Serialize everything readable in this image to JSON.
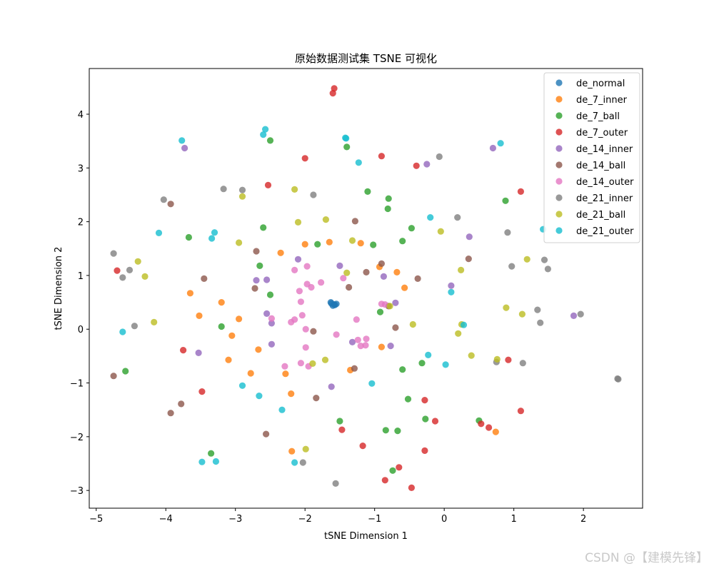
{
  "chart_data": {
    "type": "scatter",
    "title": "原始数据测试集 TSNE 可视化",
    "xlabel": "tSNE Dimension 1",
    "ylabel": "tSNE Dimension 2",
    "xlim": [
      -5.1,
      2.85
    ],
    "ylim": [
      -3.33,
      4.85
    ],
    "xticks": [
      -5,
      -4,
      -3,
      -2,
      -1,
      0,
      1,
      2
    ],
    "yticks": [
      -3,
      -2,
      -1,
      0,
      1,
      2,
      3,
      4
    ],
    "legend_position": "top-right",
    "series": [
      {
        "name": "de_normal",
        "color": "#1f77b4",
        "points": [
          [
            -1.62,
            0.48
          ],
          [
            -1.58,
            0.46
          ],
          [
            -1.6,
            0.44
          ],
          [
            -1.55,
            0.47
          ],
          [
            -1.63,
            0.5
          ],
          [
            -1.57,
            0.45
          ]
        ]
      },
      {
        "name": "de_7_inner",
        "color": "#ff7f0e",
        "points": [
          [
            -2.0,
            1.58
          ],
          [
            -1.65,
            1.62
          ],
          [
            -1.2,
            1.6
          ],
          [
            -2.35,
            1.42
          ],
          [
            -0.68,
            1.06
          ],
          [
            -0.57,
            0.77
          ],
          [
            -3.65,
            0.67
          ],
          [
            -3.2,
            0.5
          ],
          [
            -2.95,
            0.19
          ],
          [
            -3.52,
            0.25
          ],
          [
            -3.05,
            -0.12
          ],
          [
            -2.67,
            -0.38
          ],
          [
            -3.1,
            -0.57
          ],
          [
            -2.78,
            -0.82
          ],
          [
            -2.28,
            -0.83
          ],
          [
            -2.2,
            -1.2
          ],
          [
            -2.19,
            -2.27
          ],
          [
            -0.93,
            1.16
          ],
          [
            -0.9,
            -0.33
          ],
          [
            -1.35,
            -0.76
          ],
          [
            0.74,
            -1.91
          ]
        ]
      },
      {
        "name": "de_7_ball",
        "color": "#2ca02c",
        "points": [
          [
            -2.5,
            3.51
          ],
          [
            -1.4,
            3.39
          ],
          [
            -1.1,
            2.56
          ],
          [
            -0.8,
            2.43
          ],
          [
            -0.81,
            2.24
          ],
          [
            -2.6,
            1.89
          ],
          [
            -0.47,
            1.88
          ],
          [
            -3.67,
            1.71
          ],
          [
            -1.82,
            1.58
          ],
          [
            -1.02,
            1.57
          ],
          [
            -0.6,
            1.64
          ],
          [
            -2.65,
            1.18
          ],
          [
            -2.5,
            0.64
          ],
          [
            -0.92,
            0.32
          ],
          [
            -3.2,
            0.05
          ],
          [
            -0.6,
            -0.75
          ],
          [
            -0.32,
            -0.63
          ],
          [
            -4.58,
            -0.78
          ],
          [
            -0.52,
            -1.3
          ],
          [
            -1.5,
            -1.71
          ],
          [
            -0.84,
            -1.88
          ],
          [
            -0.67,
            -1.89
          ],
          [
            -0.27,
            -1.67
          ],
          [
            0.5,
            -1.7
          ],
          [
            -3.35,
            -2.31
          ],
          [
            -0.74,
            -2.63
          ],
          [
            0.88,
            2.39
          ]
        ]
      },
      {
        "name": "de_7_outer",
        "color": "#d62728",
        "points": [
          [
            -1.58,
            4.48
          ],
          [
            -1.6,
            4.39
          ],
          [
            -2.0,
            3.18
          ],
          [
            -0.9,
            3.22
          ],
          [
            -0.4,
            3.04
          ],
          [
            -2.53,
            2.68
          ],
          [
            1.1,
            2.56
          ],
          [
            -4.7,
            1.09
          ],
          [
            -3.75,
            -0.39
          ],
          [
            -3.48,
            -1.16
          ],
          [
            0.92,
            -0.57
          ],
          [
            -1.47,
            -1.87
          ],
          [
            -1.17,
            -2.17
          ],
          [
            -0.28,
            -1.32
          ],
          [
            -0.13,
            -1.71
          ],
          [
            0.53,
            -1.76
          ],
          [
            0.64,
            -1.83
          ],
          [
            1.1,
            -1.52
          ],
          [
            -0.28,
            -2.26
          ],
          [
            -0.85,
            -2.81
          ],
          [
            -0.65,
            -2.57
          ],
          [
            -0.47,
            -2.95
          ]
        ]
      },
      {
        "name": "de_14_inner",
        "color": "#9467bd",
        "points": [
          [
            -3.73,
            3.37
          ],
          [
            -0.25,
            3.07
          ],
          [
            0.7,
            3.37
          ],
          [
            0.36,
            1.72
          ],
          [
            -2.1,
            1.3
          ],
          [
            -1.5,
            1.18
          ],
          [
            -2.7,
            0.91
          ],
          [
            -2.55,
            0.92
          ],
          [
            -0.87,
            0.98
          ],
          [
            -0.7,
            0.49
          ],
          [
            0.1,
            0.81
          ],
          [
            -2.55,
            0.29
          ],
          [
            -2.48,
            0.11
          ],
          [
            -3.53,
            -0.44
          ],
          [
            -2.48,
            -0.28
          ],
          [
            -1.32,
            -0.24
          ],
          [
            -0.77,
            -0.31
          ],
          [
            -1.62,
            -1.07
          ],
          [
            1.86,
            0.25
          ]
        ]
      },
      {
        "name": "de_14_ball",
        "color": "#8c564b",
        "points": [
          [
            -3.93,
            2.33
          ],
          [
            -1.28,
            2.01
          ],
          [
            -2.7,
            1.45
          ],
          [
            -0.9,
            1.22
          ],
          [
            0.35,
            1.31
          ],
          [
            -3.45,
            0.94
          ],
          [
            -2.72,
            0.76
          ],
          [
            -1.37,
            0.78
          ],
          [
            -1.12,
            1.06
          ],
          [
            -0.38,
            0.94
          ],
          [
            -0.8,
            0.43
          ],
          [
            -0.7,
            0.03
          ],
          [
            -1.88,
            -0.04
          ],
          [
            -1.29,
            -0.73
          ],
          [
            -4.75,
            -0.87
          ],
          [
            -1.84,
            -1.28
          ],
          [
            -3.78,
            -1.39
          ],
          [
            -3.93,
            -1.56
          ],
          [
            -2.56,
            -1.95
          ]
        ]
      },
      {
        "name": "de_14_outer",
        "color": "#e377c2",
        "points": [
          [
            -2.15,
            1.1
          ],
          [
            -1.97,
            1.17
          ],
          [
            -1.45,
            0.95
          ],
          [
            -1.97,
            0.84
          ],
          [
            -2.08,
            0.71
          ],
          [
            -1.91,
            0.78
          ],
          [
            -1.77,
            0.87
          ],
          [
            -2.06,
            0.51
          ],
          [
            -2.48,
            0.2
          ],
          [
            -2.2,
            0.13
          ],
          [
            -2.15,
            0.18
          ],
          [
            -1.99,
            0.0
          ],
          [
            -2.04,
            0.26
          ],
          [
            -1.55,
            -0.1
          ],
          [
            -1.26,
            0.18
          ],
          [
            -0.9,
            0.47
          ],
          [
            -0.85,
            0.46
          ],
          [
            -1.24,
            -0.2
          ],
          [
            -1.2,
            -0.31
          ],
          [
            -1.13,
            -0.3
          ],
          [
            -1.12,
            -0.18
          ],
          [
            -2.29,
            -0.69
          ],
          [
            -1.99,
            -0.34
          ],
          [
            -2.06,
            -0.63
          ],
          [
            -1.95,
            -0.69
          ]
        ]
      },
      {
        "name": "de_21_inner",
        "color": "#7f7f7f",
        "points": [
          [
            -0.07,
            3.21
          ],
          [
            -3.17,
            2.61
          ],
          [
            -2.9,
            2.59
          ],
          [
            -1.88,
            2.5
          ],
          [
            -4.03,
            2.41
          ],
          [
            0.19,
            2.08
          ],
          [
            0.91,
            1.8
          ],
          [
            -4.75,
            1.41
          ],
          [
            -4.62,
            0.96
          ],
          [
            -4.52,
            1.1
          ],
          [
            0.97,
            1.17
          ],
          [
            1.44,
            1.29
          ],
          [
            1.49,
            1.12
          ],
          [
            -4.45,
            0.06
          ],
          [
            1.34,
            0.36
          ],
          [
            1.38,
            0.12
          ],
          [
            1.96,
            0.28
          ],
          [
            0.75,
            -0.61
          ],
          [
            1.13,
            -0.63
          ],
          [
            2.49,
            -0.92
          ],
          [
            2.5,
            -0.93
          ],
          [
            -2.03,
            -2.48
          ],
          [
            -1.56,
            -2.87
          ]
        ]
      },
      {
        "name": "de_21_ball",
        "color": "#bcbd22",
        "points": [
          [
            -2.15,
            2.6
          ],
          [
            -2.9,
            2.47
          ],
          [
            -1.7,
            2.04
          ],
          [
            -2.1,
            1.99
          ],
          [
            -1.32,
            1.65
          ],
          [
            -2.95,
            1.61
          ],
          [
            -0.05,
            1.82
          ],
          [
            -4.4,
            1.26
          ],
          [
            -4.3,
            0.98
          ],
          [
            -1.4,
            1.05
          ],
          [
            0.24,
            1.1
          ],
          [
            1.19,
            1.3
          ],
          [
            -4.17,
            0.13
          ],
          [
            -0.78,
            0.43
          ],
          [
            0.89,
            0.4
          ],
          [
            1.12,
            0.28
          ],
          [
            0.25,
            0.09
          ],
          [
            -0.45,
            0.09
          ],
          [
            0.2,
            -0.08
          ],
          [
            0.39,
            -0.49
          ],
          [
            0.76,
            -0.56
          ],
          [
            -1.71,
            -0.57
          ],
          [
            -1.89,
            -0.64
          ],
          [
            -1.99,
            -2.23
          ]
        ]
      },
      {
        "name": "de_21_outer",
        "color": "#17becf",
        "points": [
          [
            -2.57,
            3.72
          ],
          [
            -2.6,
            3.62
          ],
          [
            -3.77,
            3.51
          ],
          [
            -1.42,
            3.56
          ],
          [
            -1.41,
            3.55
          ],
          [
            0.81,
            3.46
          ],
          [
            -1.23,
            3.1
          ],
          [
            -0.2,
            2.08
          ],
          [
            1.42,
            1.86
          ],
          [
            -4.1,
            1.79
          ],
          [
            -3.3,
            1.8
          ],
          [
            -3.34,
            1.69
          ],
          [
            0.1,
            0.69
          ],
          [
            0.28,
            0.08
          ],
          [
            -4.62,
            -0.05
          ],
          [
            -0.23,
            -0.48
          ],
          [
            0.02,
            -0.66
          ],
          [
            -2.9,
            -1.05
          ],
          [
            -1.04,
            -1.01
          ],
          [
            -2.66,
            -1.24
          ],
          [
            -2.33,
            -1.5
          ],
          [
            -3.48,
            -2.47
          ],
          [
            -3.28,
            -2.46
          ],
          [
            -2.15,
            -2.48
          ]
        ]
      }
    ]
  },
  "watermark": "CSDN @【建模先锋】"
}
